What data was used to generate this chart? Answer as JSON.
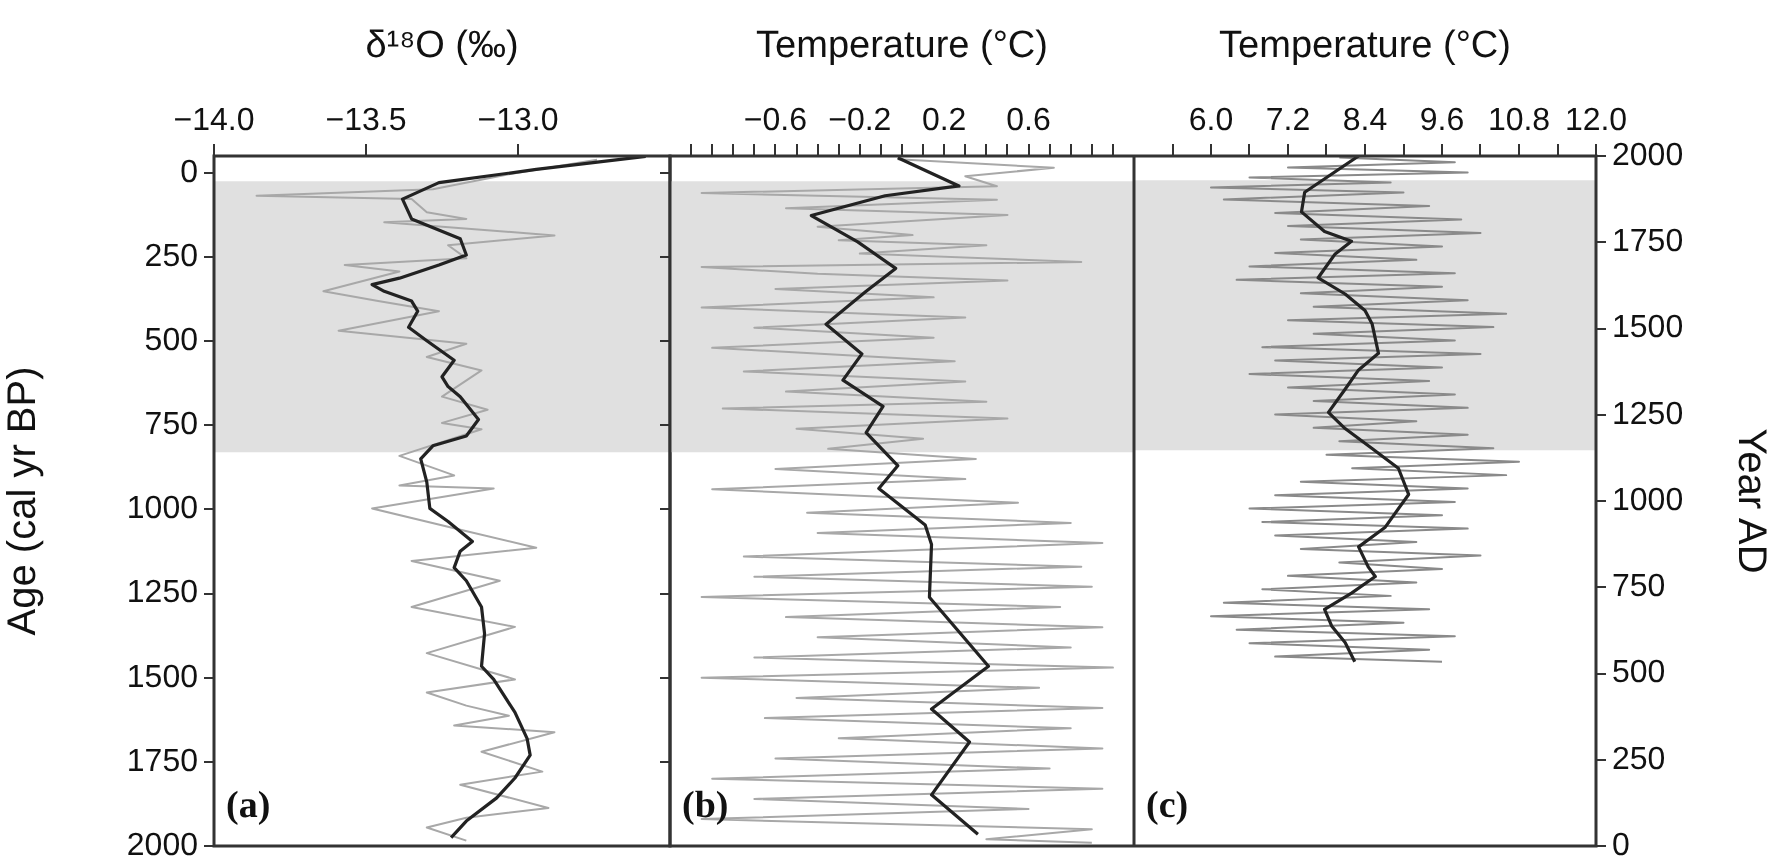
{
  "chart_data": [
    {
      "type": "line",
      "xlabel": "δ¹⁸O (‰)",
      "ylabel": "Age (cal yr BP)",
      "xlim": [
        -14.0,
        -12.5
      ],
      "xticks": [
        {
          "value": -14.0,
          "label": "−14.0"
        },
        {
          "value": -13.5,
          "label": "−13.5"
        },
        {
          "value": -13.0,
          "label": "−13.0"
        }
      ],
      "ylim": [
        2000,
        -50
      ],
      "yticks": [
        0,
        250,
        500,
        750,
        1000,
        1250,
        1500,
        1750,
        2000
      ],
      "grid": false,
      "legend": false,
      "annotations": [
        "(a)"
      ],
      "bands": [
        {
          "axis": "y",
          "from": 25,
          "to": 830,
          "color": "#e0e0e0"
        }
      ],
      "series": [
        {
          "color": "#a8a8a8",
          "x": [
            -12.74,
            -13.03,
            -13.28,
            -13.86,
            -13.35,
            -13.3,
            -13.17,
            -13.44,
            -12.88,
            -13.23,
            -13.17,
            -13.57,
            -13.39,
            -13.64,
            -13.46,
            -13.26,
            -13.59,
            -13.17,
            -13.3,
            -13.12,
            -13.25,
            -13.1,
            -13.25,
            -13.12,
            -13.39,
            -13.21,
            -13.39,
            -13.08,
            -13.48,
            -13.21,
            -12.94,
            -13.35,
            -13.06,
            -13.35,
            -13.01,
            -13.3,
            -13.01,
            -13.3,
            -13.17,
            -13.03,
            -13.21,
            -12.88,
            -13.12,
            -12.92,
            -13.19,
            -12.9,
            -13.17,
            -13.3,
            -13.17
          ],
          "values": [
            -39,
            4,
            49,
            68,
            78,
            117,
            137,
            147,
            186,
            215,
            254,
            274,
            293,
            352,
            381,
            411,
            469,
            508,
            547,
            587,
            665,
            704,
            743,
            762,
            841,
            899,
            929,
            938,
            997,
            1056,
            1114,
            1153,
            1212,
            1290,
            1349,
            1427,
            1505,
            1544,
            1583,
            1613,
            1642,
            1662,
            1720,
            1779,
            1818,
            1887,
            1916,
            1945,
            1984
          ]
        },
        {
          "color": "#222222",
          "x": [
            -12.58,
            -12.94,
            -13.26,
            -13.38,
            -13.35,
            -13.19,
            -13.17,
            -13.26,
            -13.39,
            -13.48,
            -13.44,
            -13.35,
            -13.33,
            -13.36,
            -13.3,
            -13.21,
            -13.25,
            -13.23,
            -13.19,
            -13.13,
            -13.17,
            -13.28,
            -13.32,
            -13.3,
            -13.29,
            -13.23,
            -13.15,
            -13.19,
            -13.21,
            -13.17,
            -13.12,
            -13.11,
            -13.12,
            -13.08,
            -13.01,
            -12.97,
            -12.96,
            -13.01,
            -13.07,
            -13.17,
            -13.22
          ],
          "values": [
            -49,
            -10,
            29,
            78,
            137,
            196,
            244,
            274,
            313,
            332,
            352,
            381,
            411,
            459,
            499,
            557,
            606,
            635,
            665,
            733,
            782,
            811,
            850,
            919,
            997,
            1036,
            1095,
            1124,
            1173,
            1212,
            1290,
            1369,
            1466,
            1505,
            1603,
            1681,
            1730,
            1798,
            1857,
            1926,
            1975
          ]
        }
      ]
    },
    {
      "type": "line",
      "xlabel": "Temperature (°C)",
      "xlim": [
        -1.1,
        1.1
      ],
      "xticks": [
        {
          "value": -1.0,
          "label": null
        },
        {
          "value": -0.9,
          "label": null
        },
        {
          "value": -0.8,
          "label": null
        },
        {
          "value": -0.7,
          "label": null
        },
        {
          "value": -0.6,
          "label": "−0.6"
        },
        {
          "value": -0.5,
          "label": null
        },
        {
          "value": -0.4,
          "label": null
        },
        {
          "value": -0.3,
          "label": null
        },
        {
          "value": -0.2,
          "label": "−0.2"
        },
        {
          "value": -0.1,
          "label": null
        },
        {
          "value": 0,
          "label": null
        },
        {
          "value": 0.1,
          "label": null
        },
        {
          "value": 0.2,
          "label": "0.2"
        },
        {
          "value": 0.3,
          "label": null
        },
        {
          "value": 0.4,
          "label": null
        },
        {
          "value": 0.5,
          "label": null
        },
        {
          "value": 0.6,
          "label": "0.6"
        },
        {
          "value": 0.7,
          "label": null
        },
        {
          "value": 0.8,
          "label": null
        },
        {
          "value": 0.9,
          "label": null
        },
        {
          "value": 1.0,
          "label": null
        }
      ],
      "ylim": [
        2000,
        -50
      ],
      "yticks": [
        0,
        250,
        500,
        750,
        1000,
        1250,
        1500,
        1750,
        2000
      ],
      "tick_labels": "x",
      "grid": false,
      "legend": false,
      "annotations": [
        "(b)"
      ],
      "bands": [
        {
          "axis": "y",
          "from": 25,
          "to": 830,
          "color": "#e0e0e0"
        }
      ],
      "series": [
        {
          "color": "#a8a8a8",
          "x": [
            -0.02,
            0.72,
            0.3,
            0.45,
            -0.95,
            0.45,
            -0.55,
            0.5,
            -0.4,
            0.05,
            -0.3,
            0.4,
            -0.2,
            0.85,
            -0.95,
            -0.4,
            0.5,
            -0.6,
            0.15,
            -0.95,
            0.3,
            -0.7,
            0.15,
            -0.9,
            0.25,
            -0.75,
            0.3,
            -0.55,
            0.4,
            -0.85,
            0.5,
            -0.5,
            0.1,
            -0.35,
            0.35,
            -0.6,
            0.3,
            -0.9,
            0.55,
            -0.45,
            0.8,
            -0.4,
            0.95,
            -0.75,
            0.85,
            -0.7,
            0.9,
            -0.95,
            0.75,
            -0.55,
            0.95,
            -0.4,
            0.8,
            -0.7,
            1.0,
            -0.95,
            0.65,
            -0.5,
            0.95,
            -0.65,
            0.8,
            -0.3,
            0.95,
            -0.6,
            0.7,
            -0.9,
            0.95,
            -0.7,
            0.6,
            -0.95,
            0.9,
            0.4,
            0.9
          ],
          "values": [
            -40,
            -15,
            10,
            40,
            60,
            80,
            105,
            125,
            160,
            185,
            200,
            215,
            240,
            265,
            280,
            300,
            320,
            345,
            370,
            400,
            430,
            460,
            490,
            520,
            560,
            590,
            620,
            650,
            680,
            700,
            730,
            760,
            790,
            820,
            850,
            880,
            910,
            940,
            980,
            1010,
            1040,
            1070,
            1100,
            1140,
            1170,
            1200,
            1230,
            1260,
            1290,
            1320,
            1350,
            1380,
            1410,
            1440,
            1470,
            1500,
            1530,
            1560,
            1590,
            1620,
            1650,
            1680,
            1710,
            1740,
            1770,
            1800,
            1830,
            1860,
            1890,
            1920,
            1950,
            1980,
            1990
          ]
        },
        {
          "color": "#222222",
          "x": [
            -0.02,
            0.27,
            -0.08,
            -0.43,
            -0.21,
            -0.03,
            -0.17,
            -0.36,
            -0.19,
            -0.28,
            -0.09,
            -0.17,
            -0.02,
            -0.11,
            0.11,
            0.14,
            0.13,
            0.41,
            0.14,
            0.32,
            0.14,
            0.36
          ],
          "values": [
            -45,
            39,
            68,
            127,
            205,
            284,
            352,
            450,
            538,
            616,
            694,
            772,
            870,
            938,
            1046,
            1104,
            1261,
            1466,
            1593,
            1691,
            1848,
            1965
          ]
        }
      ]
    },
    {
      "type": "line",
      "xlabel": "Temperature (°C)",
      "xlim": [
        4.8,
        12.0
      ],
      "xticks": [
        {
          "value": 5.4,
          "label": null
        },
        {
          "value": 6.0,
          "label": "6.0"
        },
        {
          "value": 6.6,
          "label": null
        },
        {
          "value": 7.2,
          "label": "7.2"
        },
        {
          "value": 7.8,
          "label": null
        },
        {
          "value": 8.4,
          "label": "8.4"
        },
        {
          "value": 9.0,
          "label": null
        },
        {
          "value": 9.6,
          "label": "9.6"
        },
        {
          "value": 10.2,
          "label": null
        },
        {
          "value": 10.8,
          "label": "10.8"
        },
        {
          "value": 11.4,
          "label": null
        },
        {
          "value": 12.0,
          "label": "12.0"
        }
      ],
      "ylabel": "Year AD",
      "ylim": [
        0,
        2000
      ],
      "yticks": [
        0,
        250,
        500,
        750,
        1000,
        1250,
        1500,
        1750,
        2000
      ],
      "grid": false,
      "legend": false,
      "annotations": [
        "(c)"
      ],
      "bands": [
        {
          "axis": "y",
          "from": 1147,
          "to": 1930,
          "color": "#e0e0e0"
        }
      ],
      "series": [
        {
          "color": "#8a8a8a",
          "x": [
            8.0,
            9.8,
            7.2,
            10.0,
            6.6,
            8.8,
            6.0,
            9.0,
            6.2,
            9.4,
            7.0,
            9.9,
            7.2,
            10.2,
            7.4,
            9.6,
            7.0,
            9.2,
            6.6,
            9.8,
            6.4,
            9.6,
            7.4,
            10.0,
            7.6,
            10.6,
            7.2,
            10.4,
            7.6,
            9.8,
            6.8,
            10.2,
            7.0,
            9.6,
            6.6,
            9.4,
            7.2,
            9.8,
            7.6,
            10.0,
            7.0,
            9.2,
            7.6,
            10.0,
            8.0,
            10.4,
            7.8,
            10.8,
            8.2,
            10.6,
            7.4,
            10.0,
            7.0,
            9.8,
            6.6,
            9.6,
            6.8,
            10.0,
            7.0,
            9.2,
            7.4,
            10.2,
            8.0,
            9.6,
            7.2,
            9.2,
            6.8,
            8.8,
            6.2,
            9.4,
            6.0,
            9.0,
            6.4,
            9.8,
            6.6,
            9.4,
            7.0,
            9.6
          ],
          "values": [
            1996,
            1982,
            1967,
            1952,
            1938,
            1923,
            1909,
            1894,
            1874,
            1855,
            1835,
            1816,
            1797,
            1777,
            1758,
            1738,
            1719,
            1699,
            1680,
            1660,
            1641,
            1621,
            1602,
            1582,
            1563,
            1543,
            1524,
            1504,
            1485,
            1465,
            1446,
            1426,
            1407,
            1387,
            1368,
            1348,
            1329,
            1309,
            1290,
            1270,
            1251,
            1231,
            1212,
            1192,
            1173,
            1153,
            1134,
            1114,
            1095,
            1075,
            1056,
            1036,
            1017,
            997,
            978,
            959,
            939,
            920,
            900,
            881,
            861,
            842,
            822,
            803,
            783,
            764,
            744,
            725,
            705,
            686,
            666,
            647,
            627,
            608,
            588,
            569,
            549,
            534
          ]
        },
        {
          "color": "#222222",
          "x": [
            8.3,
            7.46,
            7.41,
            7.77,
            8.19,
            7.93,
            7.67,
            8.09,
            8.4,
            8.51,
            8.61,
            8.3,
            8.09,
            7.83,
            8.09,
            8.51,
            8.92,
            9.08,
            8.71,
            8.3,
            8.45,
            8.56,
            8.19,
            7.77,
            7.88,
            8.09,
            8.24
          ],
          "values": [
            2000,
            1895,
            1838,
            1781,
            1753,
            1715,
            1647,
            1600,
            1552,
            1514,
            1428,
            1380,
            1324,
            1257,
            1210,
            1152,
            1095,
            1019,
            923,
            867,
            809,
            781,
            733,
            686,
            638,
            590,
            534
          ]
        }
      ]
    }
  ]
}
